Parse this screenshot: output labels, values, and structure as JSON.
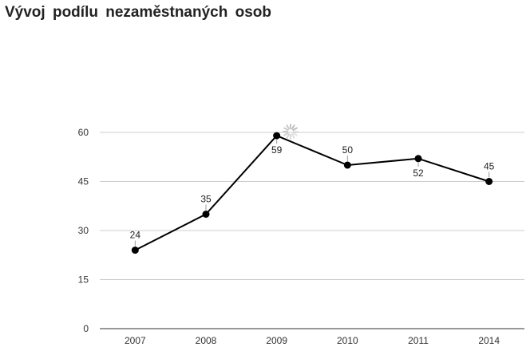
{
  "chart_data": {
    "type": "line",
    "title": "Vývoj podílu nezaměstnaných osob",
    "xlabel": "",
    "ylabel": "",
    "categories": [
      "2007",
      "2008",
      "2009",
      "2010",
      "2011",
      "2014"
    ],
    "series": [
      {
        "values": [
          24,
          35,
          59,
          50,
          52,
          45
        ],
        "color": "#000000"
      }
    ],
    "data_labels": [
      "24",
      "35",
      "59",
      "50",
      "52",
      "45"
    ],
    "yticks": [
      "0",
      "15",
      "30",
      "45",
      "60"
    ],
    "ylim": [
      0,
      60
    ],
    "grid": true,
    "legend": "none"
  }
}
